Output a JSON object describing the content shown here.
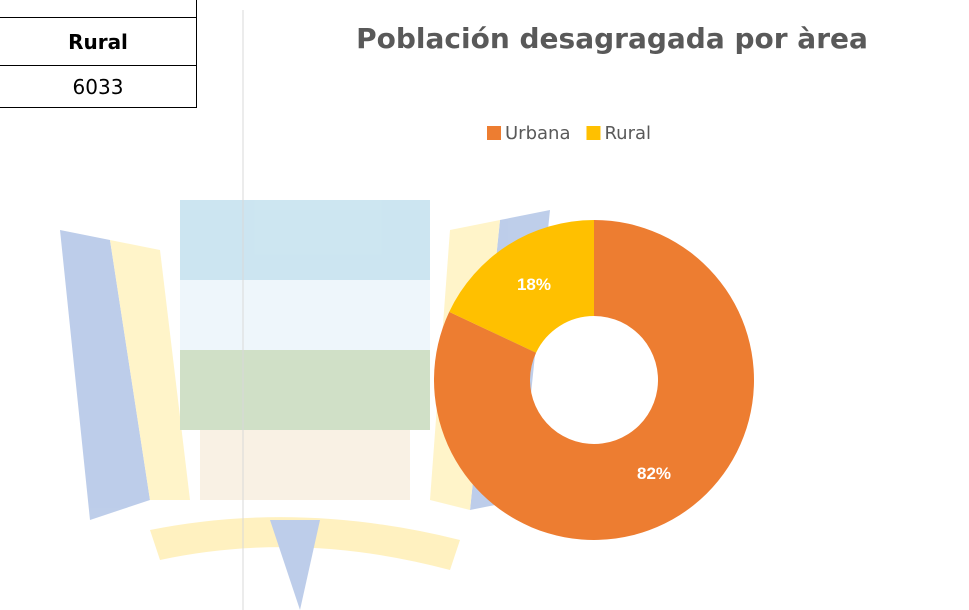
{
  "table": {
    "header": "Rural",
    "value": 6033
  },
  "chart_data": {
    "type": "donut",
    "title": "Población desagragada por àrea",
    "categories": [
      "Urbana",
      "Rural"
    ],
    "values": [
      82,
      18
    ],
    "value_labels": [
      "82%",
      "18%"
    ],
    "colors": [
      "#ED7D31",
      "#FFC000"
    ],
    "legend": "top"
  }
}
